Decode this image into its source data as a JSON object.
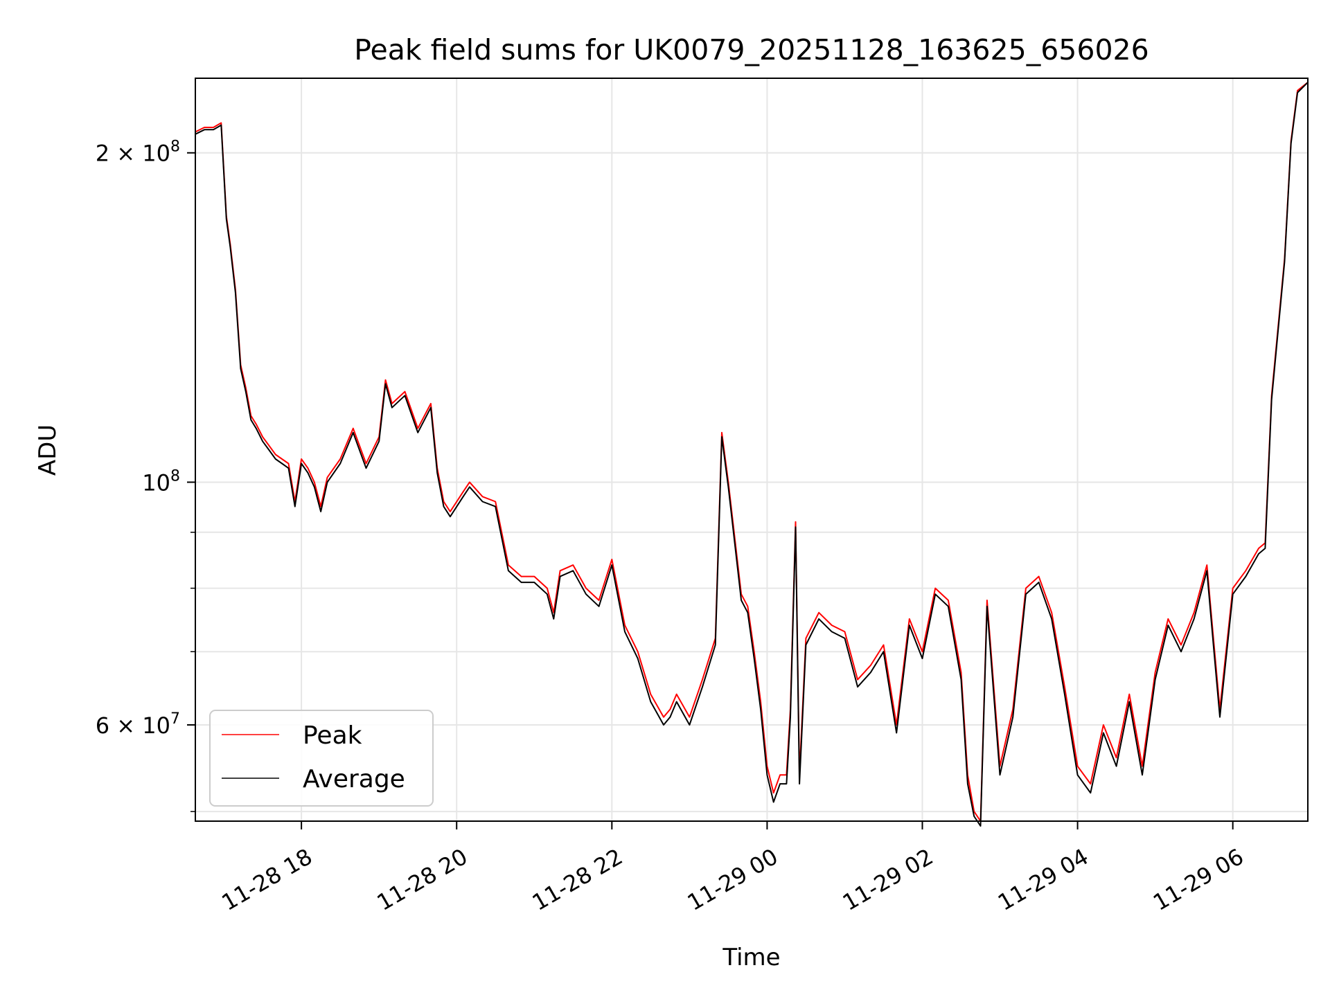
{
  "chart_data": {
    "type": "line",
    "title": "Peak field sums for UK0079_20251128_163625_656026",
    "xlabel": "Time",
    "ylabel": "ADU",
    "yscale": "log",
    "grid": true,
    "legend_position": "lower-left",
    "xlim": [
      "2025-11-28 16:38",
      "2025-11-29 06:58"
    ],
    "ylim": [
      49000000,
      234000000
    ],
    "x_ticks": [
      {
        "value": "2025-11-28 18:00",
        "label": "11-28 18"
      },
      {
        "value": "2025-11-28 20:00",
        "label": "11-28 20"
      },
      {
        "value": "2025-11-28 22:00",
        "label": "11-28 22"
      },
      {
        "value": "2025-11-29 00:00",
        "label": "11-29 00"
      },
      {
        "value": "2025-11-29 02:00",
        "label": "11-29 02"
      },
      {
        "value": "2025-11-29 04:00",
        "label": "11-29 04"
      },
      {
        "value": "2025-11-29 06:00",
        "label": "11-29 06"
      }
    ],
    "y_ticks_major": [
      {
        "value": 200000000,
        "base": "2 × 10",
        "exp": "8"
      },
      {
        "value": 100000000,
        "base": "10",
        "exp": "8"
      },
      {
        "value": 60000000,
        "base": "6 × 10",
        "exp": "7"
      }
    ],
    "y_ticks_minor": [
      50000000,
      70000000,
      80000000,
      90000000
    ],
    "series": [
      {
        "name": "Peak",
        "color": "#ff0000",
        "x": [
          "2025-11-28 16:38",
          "2025-11-28 16:45",
          "2025-11-28 16:52",
          "2025-11-28 16:58",
          "2025-11-28 17:02",
          "2025-11-28 17:05",
          "2025-11-28 17:09",
          "2025-11-28 17:13",
          "2025-11-28 17:17",
          "2025-11-28 17:21",
          "2025-11-28 17:25",
          "2025-11-28 17:30",
          "2025-11-28 17:35",
          "2025-11-28 17:40",
          "2025-11-28 17:45",
          "2025-11-28 17:50",
          "2025-11-28 17:55",
          "2025-11-28 18:00",
          "2025-11-28 18:05",
          "2025-11-28 18:10",
          "2025-11-28 18:15",
          "2025-11-28 18:20",
          "2025-11-28 18:30",
          "2025-11-28 18:40",
          "2025-11-28 18:50",
          "2025-11-28 19:00",
          "2025-11-28 19:05",
          "2025-11-28 19:10",
          "2025-11-28 19:20",
          "2025-11-28 19:30",
          "2025-11-28 19:40",
          "2025-11-28 19:45",
          "2025-11-28 19:50",
          "2025-11-28 19:55",
          "2025-11-28 20:05",
          "2025-11-28 20:10",
          "2025-11-28 20:20",
          "2025-11-28 20:30",
          "2025-11-28 20:40",
          "2025-11-28 20:50",
          "2025-11-28 21:00",
          "2025-11-28 21:10",
          "2025-11-28 21:15",
          "2025-11-28 21:20",
          "2025-11-28 21:30",
          "2025-11-28 21:40",
          "2025-11-28 21:50",
          "2025-11-28 22:00",
          "2025-11-28 22:10",
          "2025-11-28 22:20",
          "2025-11-28 22:30",
          "2025-11-28 22:40",
          "2025-11-28 22:45",
          "2025-11-28 22:50",
          "2025-11-28 23:00",
          "2025-11-28 23:10",
          "2025-11-28 23:20",
          "2025-11-28 23:25",
          "2025-11-28 23:30",
          "2025-11-28 23:40",
          "2025-11-28 23:45",
          "2025-11-28 23:50",
          "2025-11-28 23:55",
          "2025-11-29 00:00",
          "2025-11-29 00:05",
          "2025-11-29 00:10",
          "2025-11-29 00:15",
          "2025-11-29 00:18",
          "2025-11-29 00:22",
          "2025-11-29 00:25",
          "2025-11-29 00:30",
          "2025-11-29 00:40",
          "2025-11-29 00:50",
          "2025-11-29 01:00",
          "2025-11-29 01:10",
          "2025-11-29 01:20",
          "2025-11-29 01:30",
          "2025-11-29 01:40",
          "2025-11-29 01:50",
          "2025-11-29 02:00",
          "2025-11-29 02:10",
          "2025-11-29 02:20",
          "2025-11-29 02:30",
          "2025-11-29 02:35",
          "2025-11-29 02:40",
          "2025-11-29 02:45",
          "2025-11-29 02:50",
          "2025-11-29 03:00",
          "2025-11-29 03:10",
          "2025-11-29 03:20",
          "2025-11-29 03:30",
          "2025-11-29 03:40",
          "2025-11-29 03:50",
          "2025-11-29 04:00",
          "2025-11-29 04:10",
          "2025-11-29 04:20",
          "2025-11-29 04:30",
          "2025-11-29 04:40",
          "2025-11-29 04:50",
          "2025-11-29 05:00",
          "2025-11-29 05:10",
          "2025-11-29 05:20",
          "2025-11-29 05:30",
          "2025-11-29 05:40",
          "2025-11-29 05:45",
          "2025-11-29 05:50",
          "2025-11-29 06:00",
          "2025-11-29 06:10",
          "2025-11-29 06:20",
          "2025-11-29 06:25",
          "2025-11-29 06:30",
          "2025-11-29 06:40",
          "2025-11-29 06:45",
          "2025-11-29 06:50",
          "2025-11-29 06:58"
        ],
        "values": [
          209000000,
          211000000,
          211000000,
          213000000,
          175000000,
          165000000,
          150000000,
          128000000,
          122000000,
          115000000,
          113000000,
          110000000,
          108000000,
          106000000,
          105000000,
          104000000,
          96000000,
          105000000,
          103000000,
          100000000,
          95000000,
          101000000,
          105000000,
          112000000,
          104000000,
          110000000,
          124000000,
          118000000,
          121000000,
          112000000,
          118000000,
          103000000,
          96000000,
          94000000,
          98000000,
          100000000,
          97000000,
          96000000,
          84000000,
          82000000,
          82000000,
          80000000,
          76000000,
          83000000,
          84000000,
          80000000,
          78000000,
          85000000,
          74000000,
          70000000,
          64000000,
          61000000,
          62000000,
          64000000,
          61000000,
          66000000,
          72000000,
          111000000,
          100000000,
          79000000,
          77000000,
          70000000,
          63000000,
          55000000,
          52000000,
          54000000,
          54000000,
          62000000,
          92000000,
          54000000,
          72000000,
          76000000,
          74000000,
          73000000,
          66000000,
          68000000,
          71000000,
          60000000,
          75000000,
          70000000,
          80000000,
          78000000,
          67000000,
          54000000,
          50000000,
          49000000,
          78000000,
          55000000,
          62000000,
          80000000,
          82000000,
          76000000,
          65000000,
          55000000,
          53000000,
          60000000,
          56000000,
          64000000,
          55000000,
          67000000,
          75000000,
          71000000,
          76000000,
          84000000,
          72000000,
          62000000,
          80000000,
          83000000,
          87000000,
          88000000,
          120000000,
          160000000,
          205000000,
          228000000,
          232000000
        ],
        "linewidth": 1
      },
      {
        "name": "Average",
        "color": "#000000",
        "x": [
          "2025-11-28 16:38",
          "2025-11-28 16:45",
          "2025-11-28 16:52",
          "2025-11-28 16:58",
          "2025-11-28 17:02",
          "2025-11-28 17:05",
          "2025-11-28 17:09",
          "2025-11-28 17:13",
          "2025-11-28 17:17",
          "2025-11-28 17:21",
          "2025-11-28 17:25",
          "2025-11-28 17:30",
          "2025-11-28 17:35",
          "2025-11-28 17:40",
          "2025-11-28 17:45",
          "2025-11-28 17:50",
          "2025-11-28 17:55",
          "2025-11-28 18:00",
          "2025-11-28 18:05",
          "2025-11-28 18:10",
          "2025-11-28 18:15",
          "2025-11-28 18:20",
          "2025-11-28 18:30",
          "2025-11-28 18:40",
          "2025-11-28 18:50",
          "2025-11-28 19:00",
          "2025-11-28 19:05",
          "2025-11-28 19:10",
          "2025-11-28 19:20",
          "2025-11-28 19:30",
          "2025-11-28 19:40",
          "2025-11-28 19:45",
          "2025-11-28 19:50",
          "2025-11-28 19:55",
          "2025-11-28 20:05",
          "2025-11-28 20:10",
          "2025-11-28 20:20",
          "2025-11-28 20:30",
          "2025-11-28 20:40",
          "2025-11-28 20:50",
          "2025-11-28 21:00",
          "2025-11-28 21:10",
          "2025-11-28 21:15",
          "2025-11-28 21:20",
          "2025-11-28 21:30",
          "2025-11-28 21:40",
          "2025-11-28 21:50",
          "2025-11-28 22:00",
          "2025-11-28 22:10",
          "2025-11-28 22:20",
          "2025-11-28 22:30",
          "2025-11-28 22:40",
          "2025-11-28 22:45",
          "2025-11-28 22:50",
          "2025-11-28 23:00",
          "2025-11-28 23:10",
          "2025-11-28 23:20",
          "2025-11-28 23:25",
          "2025-11-28 23:30",
          "2025-11-28 23:40",
          "2025-11-28 23:45",
          "2025-11-28 23:50",
          "2025-11-28 23:55",
          "2025-11-29 00:00",
          "2025-11-29 00:05",
          "2025-11-29 00:10",
          "2025-11-29 00:15",
          "2025-11-29 00:18",
          "2025-11-29 00:22",
          "2025-11-29 00:25",
          "2025-11-29 00:30",
          "2025-11-29 00:40",
          "2025-11-29 00:50",
          "2025-11-29 01:00",
          "2025-11-29 01:10",
          "2025-11-29 01:20",
          "2025-11-29 01:30",
          "2025-11-29 01:40",
          "2025-11-29 01:50",
          "2025-11-29 02:00",
          "2025-11-29 02:10",
          "2025-11-29 02:20",
          "2025-11-29 02:30",
          "2025-11-29 02:35",
          "2025-11-29 02:40",
          "2025-11-29 02:45",
          "2025-11-29 02:50",
          "2025-11-29 03:00",
          "2025-11-29 03:10",
          "2025-11-29 03:20",
          "2025-11-29 03:30",
          "2025-11-29 03:40",
          "2025-11-29 03:50",
          "2025-11-29 04:00",
          "2025-11-29 04:10",
          "2025-11-29 04:20",
          "2025-11-29 04:30",
          "2025-11-29 04:40",
          "2025-11-29 04:50",
          "2025-11-29 05:00",
          "2025-11-29 05:10",
          "2025-11-29 05:20",
          "2025-11-29 05:30",
          "2025-11-29 05:40",
          "2025-11-29 05:45",
          "2025-11-29 05:50",
          "2025-11-29 06:00",
          "2025-11-29 06:10",
          "2025-11-29 06:20",
          "2025-11-29 06:25",
          "2025-11-29 06:30",
          "2025-11-29 06:40",
          "2025-11-29 06:45",
          "2025-11-29 06:50",
          "2025-11-29 06:58"
        ],
        "values": [
          208000000,
          210000000,
          210000000,
          212000000,
          174000000,
          164000000,
          149000000,
          127000000,
          121000000,
          114000000,
          112000000,
          109000000,
          107000000,
          105000000,
          104000000,
          103000000,
          95000000,
          104000000,
          102000000,
          99000000,
          94000000,
          100000000,
          104000000,
          111000000,
          103000000,
          109000000,
          123000000,
          117000000,
          120000000,
          111000000,
          117000000,
          102000000,
          95000000,
          93000000,
          97000000,
          99000000,
          96000000,
          95000000,
          83000000,
          81000000,
          81000000,
          79000000,
          75000000,
          82000000,
          83000000,
          79000000,
          77000000,
          84000000,
          73000000,
          69000000,
          63000000,
          60000000,
          61000000,
          63000000,
          60000000,
          65000000,
          71000000,
          110000000,
          99000000,
          78000000,
          76000000,
          69000000,
          62000000,
          54000000,
          51000000,
          53000000,
          53000000,
          61000000,
          91000000,
          53000000,
          71000000,
          75000000,
          73000000,
          72000000,
          65000000,
          67000000,
          70000000,
          59000000,
          74000000,
          69000000,
          79000000,
          77000000,
          66000000,
          53000000,
          49500000,
          48500000,
          77000000,
          54000000,
          61000000,
          79000000,
          81000000,
          75000000,
          64000000,
          54000000,
          52000000,
          59000000,
          55000000,
          63000000,
          54000000,
          66000000,
          74000000,
          70000000,
          75000000,
          83000000,
          71000000,
          61000000,
          79000000,
          82000000,
          86000000,
          87000000,
          119000000,
          159000000,
          204000000,
          227000000,
          232000000
        ],
        "linewidth": 1
      }
    ]
  }
}
